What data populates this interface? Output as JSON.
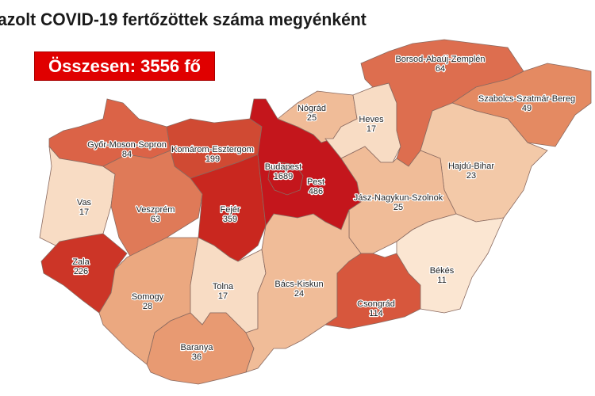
{
  "title": "azolt COVID-19 fertőzöttek száma megyénként",
  "total_label": "Összesen: 3556 fő",
  "total_box_color": "#e00000",
  "counties": [
    {
      "name": "Győr-Moson-Sopron",
      "value": "84",
      "color": "#db6347"
    },
    {
      "name": "Komárom-Esztergom",
      "value": "199",
      "color": "#d04a33"
    },
    {
      "name": "Vas",
      "value": "17",
      "color": "#f8dcc4"
    },
    {
      "name": "Veszprém",
      "value": "63",
      "color": "#df7a58"
    },
    {
      "name": "Fejér",
      "value": "359",
      "color": "#c9271f"
    },
    {
      "name": "Zala",
      "value": "226",
      "color": "#cc3527"
    },
    {
      "name": "Somogy",
      "value": "28",
      "color": "#eba880"
    },
    {
      "name": "Tolna",
      "value": "17",
      "color": "#f8dcc4"
    },
    {
      "name": "Baranya",
      "value": "36",
      "color": "#e89a72"
    },
    {
      "name": "Pest",
      "value": "486",
      "color": "#c4161c"
    },
    {
      "name": "Budapest",
      "value": "1689",
      "color": "#c4161c"
    },
    {
      "name": "Nógrád",
      "value": "25",
      "color": "#f0bc98"
    },
    {
      "name": "Heves",
      "value": "17",
      "color": "#f8dcc4"
    },
    {
      "name": "Borsod-Abaúj-Zemplén",
      "value": "64",
      "color": "#dd6e4f"
    },
    {
      "name": "Szabolcs-Szatmár-Bereg",
      "value": "49",
      "color": "#e48a62"
    },
    {
      "name": "Hajdú-Bihar",
      "value": "23",
      "color": "#f3c9a8"
    },
    {
      "name": "Jász-Nagykun-Szolnok",
      "value": "25",
      "color": "#f0bc98"
    },
    {
      "name": "Bács-Kiskun",
      "value": "24",
      "color": "#f0bc98"
    },
    {
      "name": "Csongrád",
      "value": "114",
      "color": "#d7573d"
    },
    {
      "name": "Békés",
      "value": "11",
      "color": "#fbe6d2"
    }
  ]
}
